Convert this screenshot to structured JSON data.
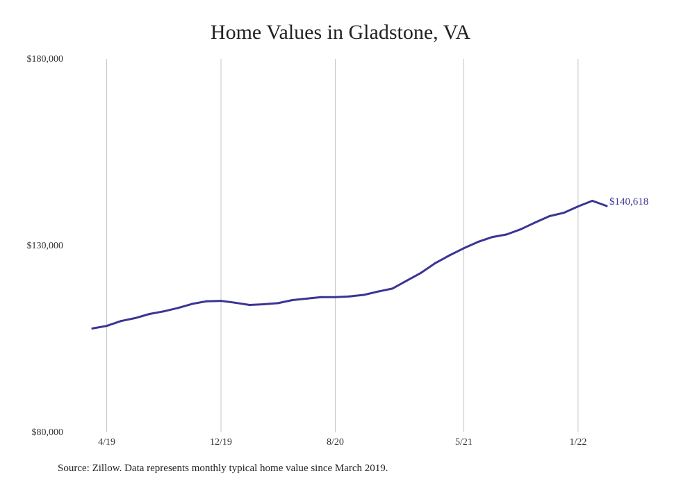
{
  "chart_data": {
    "type": "line",
    "title": "Home Values in Gladstone, VA",
    "note": "Source: Zillow. Data represents monthly typical home value since March 2019.",
    "y_ticks": [
      "$180,000",
      "$130,000",
      "$80,000"
    ],
    "ylim": [
      80000,
      180000
    ],
    "x_ticks": [
      "4/19",
      "12/19",
      "8/20",
      "5/21",
      "1/22"
    ],
    "x": [
      "3/19",
      "4/19",
      "5/19",
      "6/19",
      "7/19",
      "8/19",
      "9/19",
      "10/19",
      "11/19",
      "12/19",
      "1/20",
      "2/20",
      "3/20",
      "4/20",
      "5/20",
      "6/20",
      "7/20",
      "8/20",
      "9/20",
      "10/20",
      "11/20",
      "12/20",
      "1/21",
      "2/21",
      "3/21",
      "4/21",
      "5/21",
      "6/21",
      "7/21",
      "8/21",
      "9/21",
      "10/21",
      "11/21",
      "12/21",
      "1/22",
      "2/22",
      "3/22"
    ],
    "series": [
      {
        "color": "#3b3594",
        "values": [
          107800,
          108500,
          109800,
          110600,
          111700,
          112400,
          113300,
          114400,
          115100,
          115200,
          114700,
          114100,
          114300,
          114600,
          115400,
          115800,
          116200,
          116200,
          116400,
          116800,
          117700,
          118500,
          120600,
          122700,
          125300,
          127400,
          129300,
          131000,
          132300,
          133000,
          134400,
          136200,
          137900,
          138800,
          140500,
          142000,
          140618
        ]
      }
    ],
    "end_label": "$140,618",
    "grid": "vertical"
  }
}
